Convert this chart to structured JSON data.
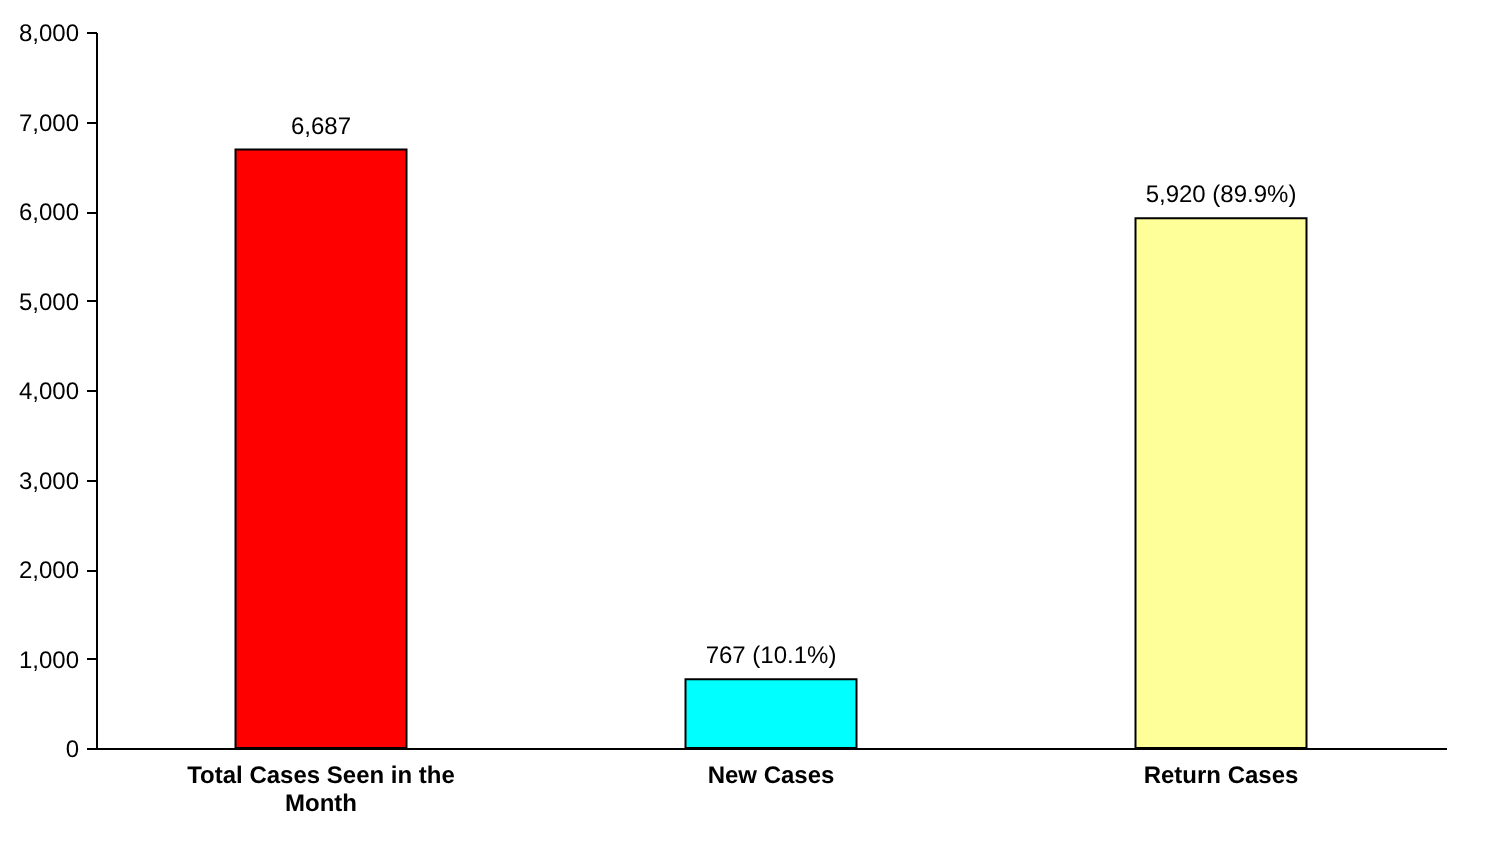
{
  "chart_data": {
    "type": "bar",
    "categories": [
      "Total Cases Seen in the Month",
      "New Cases",
      "Return Cases"
    ],
    "values": [
      6687,
      767,
      5920
    ],
    "colors": [
      "#ff0000",
      "#00ffff",
      "#ffff99"
    ],
    "value_labels": [
      "6,687",
      "767 (10.1%)",
      "5,920 (89.9%)"
    ],
    "ylim": [
      0,
      8000
    ],
    "yticks": [
      0,
      {
        "value": 1000,
        "label": "1,000"
      },
      {
        "value": 2000,
        "label": "2,000"
      },
      {
        "value": 3000,
        "label": "3,000"
      },
      {
        "value": 4000,
        "label": "4,000"
      },
      {
        "value": 5000,
        "label": "5,000"
      },
      {
        "value": 6000,
        "label": "6,000"
      },
      {
        "value": 7000,
        "label": "7,000"
      },
      {
        "value": 8000,
        "label": "8,000"
      }
    ],
    "grid": false
  }
}
